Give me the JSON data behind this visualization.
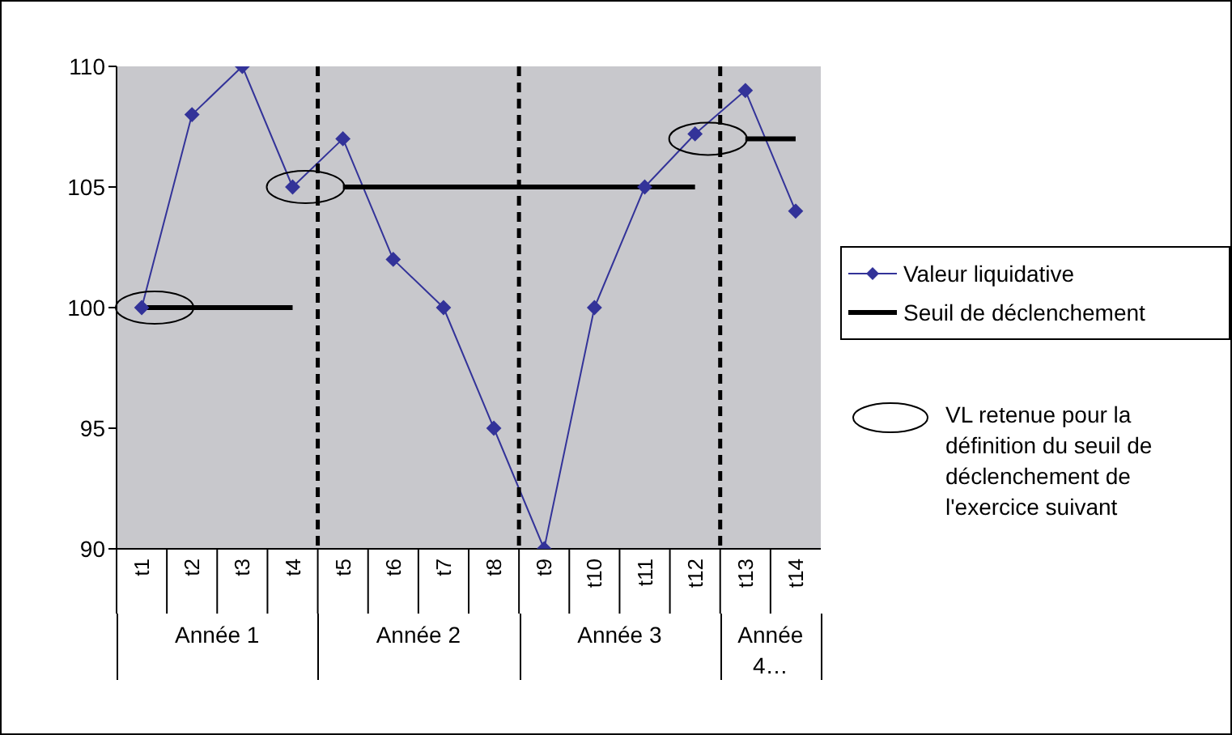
{
  "chart_data": {
    "type": "line",
    "categories": [
      "t1",
      "t2",
      "t3",
      "t4",
      "t5",
      "t6",
      "t7",
      "t8",
      "t9",
      "t10",
      "t11",
      "t12",
      "t13",
      "t14"
    ],
    "series": [
      {
        "name": "Valeur liquidative",
        "color": "#333399",
        "marker": "diamond",
        "values": [
          100,
          108,
          110,
          105,
          107,
          102,
          100,
          95,
          90,
          100,
          105,
          107.2,
          109,
          104
        ]
      },
      {
        "name": "Seuil de déclenchement",
        "type": "step",
        "color": "#000000",
        "marker": "none",
        "values": [
          100,
          100,
          100,
          100,
          105,
          105,
          105,
          105,
          105,
          105,
          105,
          105,
          107,
          107
        ]
      }
    ],
    "ylim": [
      90,
      110
    ],
    "yticks": [
      90,
      95,
      100,
      105,
      110
    ],
    "grid": false,
    "legend": "right",
    "annotations": [
      "Année 1",
      "Année 2",
      "Année 3",
      "Année 4…",
      "VL retenue pour la définition du seuil de déclenchement de l'exercice suivant"
    ]
  }
}
